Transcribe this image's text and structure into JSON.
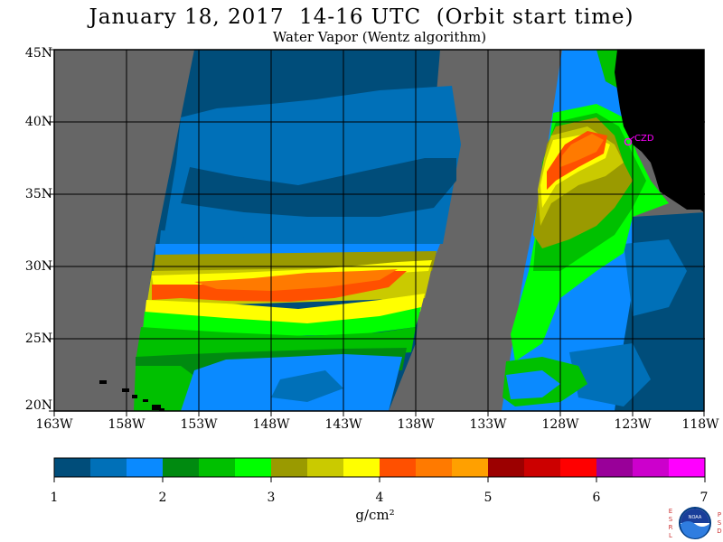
{
  "title": "January 18, 2017  14-16 UTC  (Orbit start time)",
  "subtitle": "Water Vapor (Wentz algorithm)",
  "map": {
    "lat_labels": [
      "45N",
      "40N",
      "35N",
      "30N",
      "25N",
      "20N"
    ],
    "lon_labels": [
      "163W",
      "158W",
      "153W",
      "148W",
      "143W",
      "138W",
      "133W",
      "128W",
      "123W",
      "118W"
    ],
    "extent": {
      "lon_min": -163,
      "lon_max": -118,
      "lat_min": 20,
      "lat_max": 45
    },
    "station_label": "CZD",
    "colors": {
      "no_data": "#666666",
      "land": "#000000",
      "station": "#ff00ff"
    }
  },
  "colorbar": {
    "unit_label": "g/cm²",
    "tick_labels": [
      "1",
      "2",
      "3",
      "4",
      "5",
      "6",
      "7"
    ],
    "colors": [
      "#004d7a",
      "#0070b8",
      "#0a8aff",
      "#008a10",
      "#00c000",
      "#00ff00",
      "#9a9a00",
      "#caca00",
      "#ffff00",
      "#ff5000",
      "#ff7a00",
      "#ffa000",
      "#9c0000",
      "#cc0000",
      "#ff0000",
      "#990099",
      "#cc00cc",
      "#ff00ff"
    ]
  },
  "logo": {
    "left_letters": "ESRL",
    "right_letters": "PSD",
    "center_text": "NOAA"
  }
}
